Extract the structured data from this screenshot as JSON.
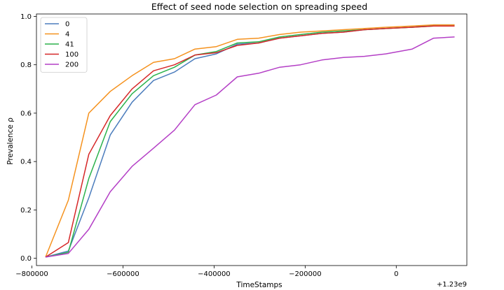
{
  "chart_data": {
    "type": "line",
    "title": "Effect of seed node selection on spreading speed",
    "xlabel": "TimeStamps",
    "ylabel": "Prevalence ρ",
    "x_offset_label": "+1.23e9",
    "xlim": [
      -790000,
      155000
    ],
    "ylim": [
      -0.03,
      1.01
    ],
    "xticks": [
      -800000,
      -600000,
      -400000,
      -200000,
      0
    ],
    "xtick_labels": [
      "−800000",
      "−600000",
      "−400000",
      "−200000",
      "0"
    ],
    "yticks": [
      0.0,
      0.2,
      0.4,
      0.6,
      0.8,
      1.0
    ],
    "ytick_labels": [
      "0.0",
      "0.2",
      "0.4",
      "0.6",
      "0.8",
      "1.0"
    ],
    "grid": false,
    "legend_position": "top-left",
    "x": [
      -770000,
      -720000,
      -675000,
      -628000,
      -580000,
      -533000,
      -487000,
      -442000,
      -395000,
      -349000,
      -302000,
      -256000,
      -210000,
      -163000,
      -116000,
      -70000,
      -23000,
      35000,
      82000,
      128000
    ],
    "series": [
      {
        "name": "0",
        "color": "#4c7dbd",
        "values": [
          0.005,
          0.03,
          0.25,
          0.51,
          0.645,
          0.735,
          0.77,
          0.825,
          0.845,
          0.885,
          0.89,
          0.91,
          0.92,
          0.93,
          0.935,
          0.945,
          0.95,
          0.955,
          0.965,
          0.965
        ]
      },
      {
        "name": "4",
        "color": "#f5921e",
        "values": [
          0.005,
          0.24,
          0.6,
          0.69,
          0.755,
          0.81,
          0.825,
          0.865,
          0.875,
          0.905,
          0.91,
          0.925,
          0.935,
          0.94,
          0.945,
          0.95,
          0.955,
          0.96,
          0.965,
          0.965
        ]
      },
      {
        "name": "41",
        "color": "#2bb24c",
        "values": [
          0.005,
          0.025,
          0.33,
          0.565,
          0.68,
          0.755,
          0.79,
          0.84,
          0.855,
          0.89,
          0.895,
          0.915,
          0.925,
          0.935,
          0.94,
          0.945,
          0.95,
          0.955,
          0.96,
          0.96
        ]
      },
      {
        "name": "100",
        "color": "#d62728",
        "values": [
          0.005,
          0.065,
          0.43,
          0.59,
          0.7,
          0.775,
          0.8,
          0.84,
          0.85,
          0.88,
          0.89,
          0.91,
          0.92,
          0.93,
          0.935,
          0.945,
          0.95,
          0.955,
          0.96,
          0.96
        ]
      },
      {
        "name": "200",
        "color": "#b43fc6",
        "values": [
          0.005,
          0.02,
          0.12,
          0.275,
          0.38,
          0.455,
          0.53,
          0.635,
          0.675,
          0.75,
          0.765,
          0.79,
          0.8,
          0.82,
          0.83,
          0.835,
          0.845,
          0.865,
          0.91,
          0.915
        ]
      }
    ]
  }
}
